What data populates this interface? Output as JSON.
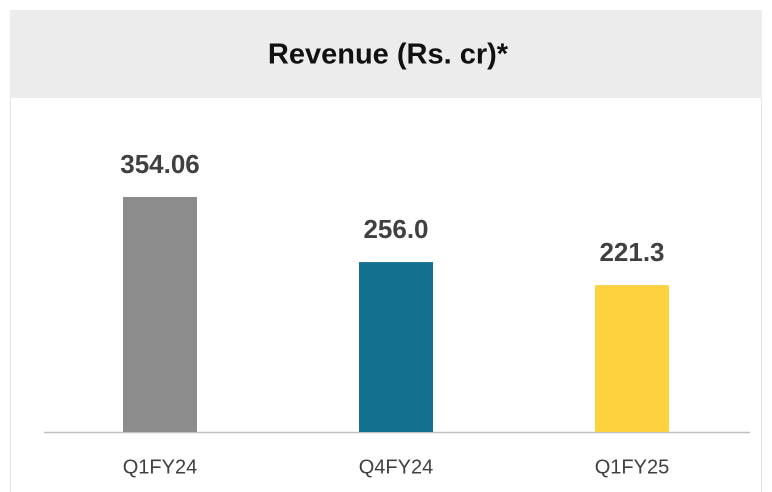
{
  "chart_data": {
    "type": "bar",
    "title": "Revenue (Rs. cr)*",
    "categories": [
      "Q1FY24",
      "Q4FY24",
      "Q1FY25"
    ],
    "values": [
      354.06,
      256,
      221.3
    ],
    "value_labels": [
      "354.06",
      "256.0",
      "221.3"
    ],
    "colors": [
      "#8c8c8c",
      "#13718f",
      "#fdd23e"
    ]
  }
}
